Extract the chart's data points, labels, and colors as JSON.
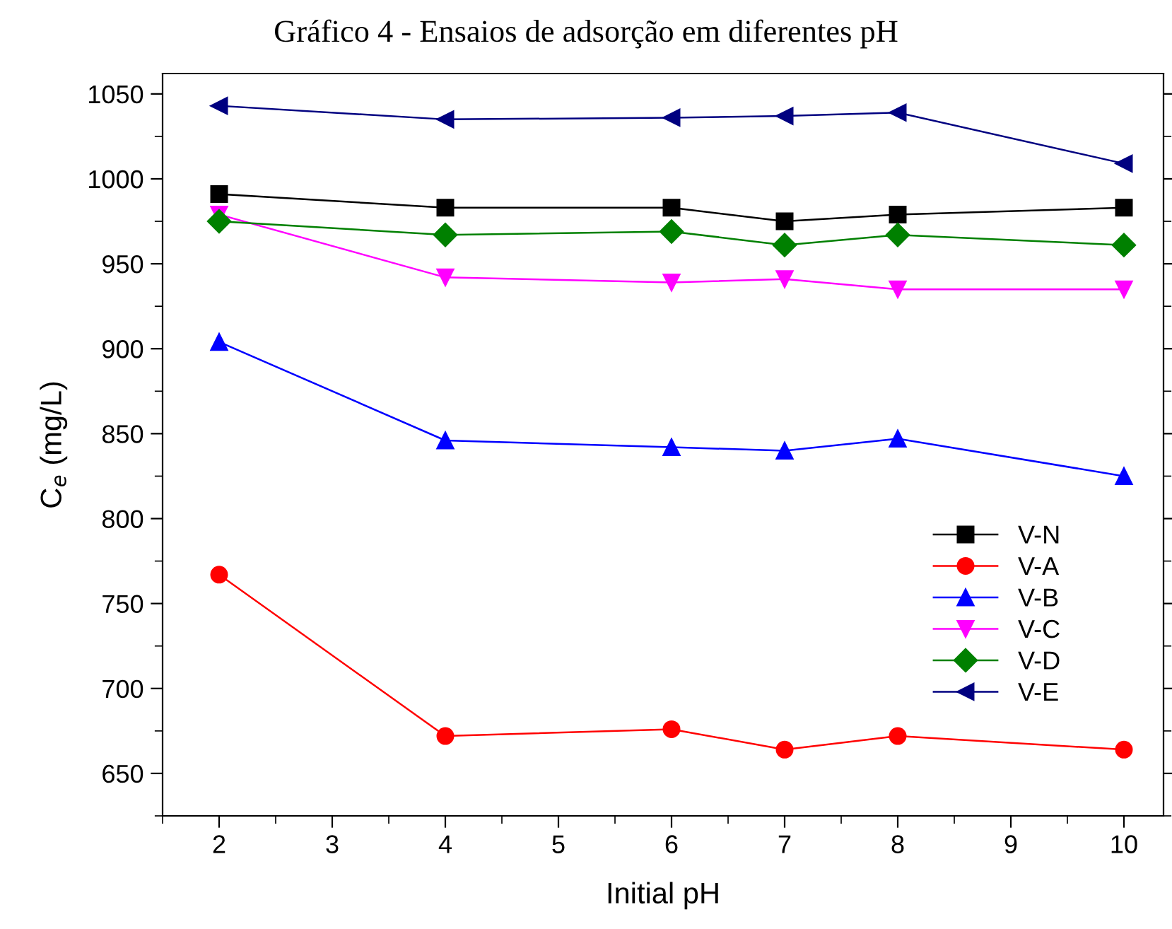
{
  "chart_data": {
    "type": "line",
    "title": "Gráfico 4 - Ensaios de adsorção em diferentes pH",
    "xlabel": "Initial pH",
    "ylabel": "C$_{e}$ (mg/L)",
    "x": [
      2,
      4,
      6,
      7,
      8,
      10
    ],
    "series": [
      {
        "name": "V-N",
        "color": "#000000",
        "marker": "square",
        "values": [
          991,
          983,
          983,
          975,
          979,
          983
        ]
      },
      {
        "name": "V-A",
        "color": "#ff0000",
        "marker": "circle",
        "values": [
          767,
          672,
          676,
          664,
          672,
          664
        ]
      },
      {
        "name": "V-B",
        "color": "#0000ff",
        "marker": "triangle",
        "values": [
          904,
          846,
          842,
          840,
          847,
          825
        ]
      },
      {
        "name": "V-C",
        "color": "#ff00ff",
        "marker": "triangle_down",
        "values": [
          979,
          942,
          939,
          941,
          935,
          935
        ]
      },
      {
        "name": "V-D",
        "color": "#008000",
        "marker": "diamond",
        "values": [
          975,
          967,
          969,
          961,
          967,
          961
        ]
      },
      {
        "name": "V-E",
        "color": "#000080",
        "marker": "triangle_left",
        "values": [
          1043,
          1035,
          1036,
          1037,
          1039,
          1009
        ]
      }
    ],
    "xlim": [
      1.5,
      10.35
    ],
    "xticks": [
      2,
      3,
      4,
      5,
      6,
      7,
      8,
      9,
      10
    ],
    "ylim": [
      625,
      1062
    ],
    "yticks": [
      650,
      700,
      750,
      800,
      850,
      900,
      950,
      1000,
      1050
    ],
    "grid": false,
    "legend": "center right",
    "line_style": "solid"
  }
}
